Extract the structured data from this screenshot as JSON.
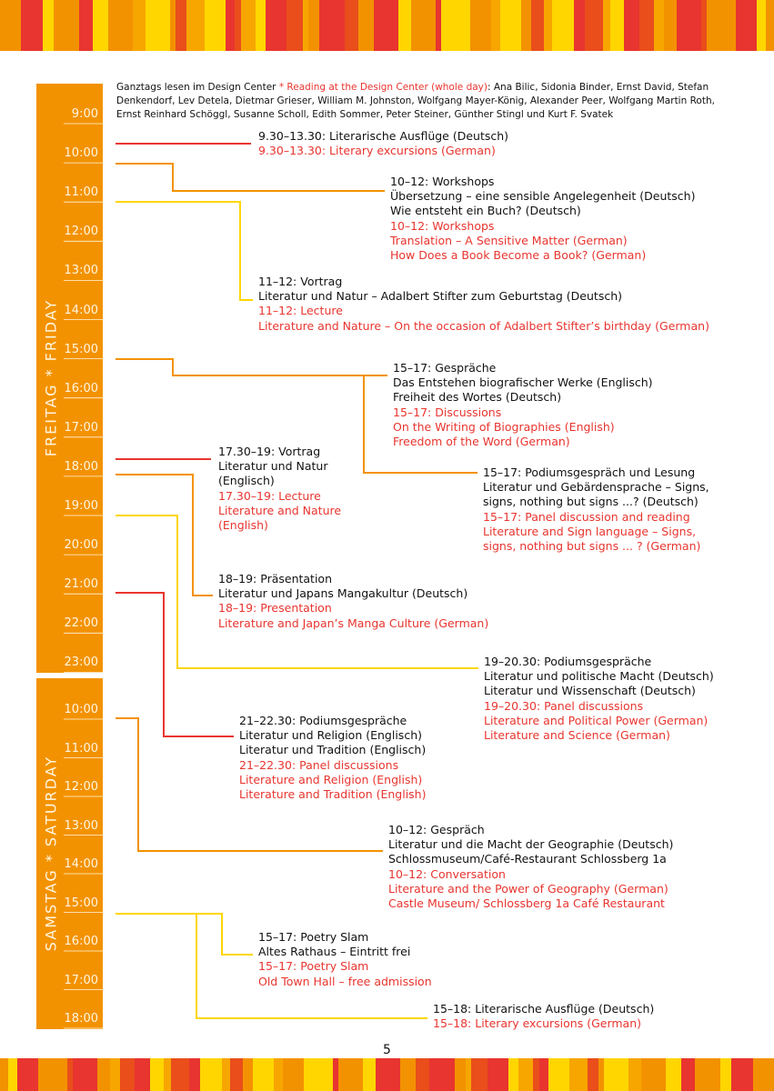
{
  "intro": {
    "de": "Ganztags lesen im Design Center",
    "en": " * Reading at the Design Center (whole day)",
    "names": ": Ana Bilic, Sidonia Binder, Ernst David, Stefan Denkendorf, Lev Detela, Dietmar Grieser, William M. Johnston, Wolfgang Mayer-König, Alexander Peer, Wolfgang Martin Roth, Ernst Reinhard Schöggl, Susanne Scholl, Edith Sommer, Peter Steiner, Günther Stingl und Kurt F. Svatek"
  },
  "friday": {
    "label": "FREITAG * FRIDAY",
    "times": [
      "9:00",
      "10:00",
      "11:00",
      "12:00",
      "13:00",
      "14:00",
      "15:00",
      "16:00",
      "17:00",
      "18:00",
      "19:00",
      "20:00",
      "21:00",
      "22:00",
      "23:00"
    ]
  },
  "saturday": {
    "label": "SAMSTAG * SATURDAY",
    "times": [
      "10:00",
      "11:00",
      "12:00",
      "13:00",
      "14:00",
      "15:00",
      "16:00",
      "17:00",
      "18:00"
    ]
  },
  "events": [
    {
      "de": [
        "9.30–13.30: Literarische Ausflüge (Deutsch)"
      ],
      "en": [
        "9.30–13.30: Literary excursions (German)"
      ]
    },
    {
      "de": [
        "10–12: Workshops",
        "Übersetzung – eine sensible Angelegenheit (Deutsch)",
        "Wie entsteht ein Buch? (Deutsch)"
      ],
      "en": [
        "10–12: Workshops",
        "Translation – A Sensitive Matter (German)",
        "How Does a Book Become a Book? (German)"
      ]
    },
    {
      "de": [
        "11–12: Vortrag",
        "Literatur und Natur – Adalbert Stifter zum Geburtstag (Deutsch)"
      ],
      "en": [
        "11–12: Lecture",
        "Literature and Nature – On the occasion of Adalbert Stifter’s birthday (German)"
      ]
    },
    {
      "de": [
        "15–17: Gespräche",
        "Das Entstehen biografischer Werke (Englisch)",
        "Freiheit des Wortes (Deutsch)"
      ],
      "en": [
        "15–17: Discussions",
        "On the Writing of Biographies (English)",
        "Freedom of the Word (German)"
      ]
    },
    {
      "de": [
        "15–17: Podiumsgespräch und Lesung",
        "Literatur und Gebärdensprache – Signs,",
        "signs, nothing but signs ...? (Deutsch)"
      ],
      "en": [
        "15–17: Panel discussion and reading",
        "Literature and Sign language – Signs,",
        "signs, nothing but signs ... ? (German)"
      ]
    },
    {
      "de": [
        "17.30–19: Vortrag",
        "Literatur und Natur",
        "(Englisch)"
      ],
      "en": [
        "17.30–19: Lecture",
        "Literature and Nature",
        "(English)"
      ]
    },
    {
      "de": [
        "18–19: Präsentation",
        "Literatur und Japans Mangakultur (Deutsch)"
      ],
      "en": [
        "18–19: Presentation",
        "Literature and Japan’s Manga Culture (German)"
      ]
    },
    {
      "de": [
        "19–20.30: Podiumsgespräche",
        "Literatur und politische Macht (Deutsch)",
        "Literatur und Wissenschaft (Deutsch)"
      ],
      "en": [
        "19–20.30: Panel discussions",
        "Literature and Political Power (German)",
        "Literature and Science (German)"
      ]
    },
    {
      "de": [
        "21–22.30: Podiumsgespräche",
        "Literatur und Religion (Englisch)",
        "Literatur und Tradition (Englisch)"
      ],
      "en": [
        "21–22.30: Panel discussions",
        "Literature and Religion (English)",
        "Literature and Tradition (English)"
      ]
    },
    {
      "de": [
        "10–12: Gespräch",
        "Literatur und die Macht der Geographie (Deutsch)",
        "Schlossmuseum/Café-Restaurant Schlossberg 1a"
      ],
      "en": [
        "10–12: Conversation",
        "Literature and the Power of Geography (German)",
        "Castle Museum/ Schlossberg 1a Café Restaurant"
      ]
    },
    {
      "de": [
        "15–17: Poetry Slam",
        "Altes Rathaus – Eintritt frei"
      ],
      "en": [
        "15–17: Poetry Slam",
        "Old Town Hall – free admission"
      ]
    },
    {
      "de": [
        "15–18: Literarische Ausflüge (Deutsch)"
      ],
      "en": [
        "15–18: Literary excursions (German)"
      ]
    }
  ],
  "page_number": "5"
}
